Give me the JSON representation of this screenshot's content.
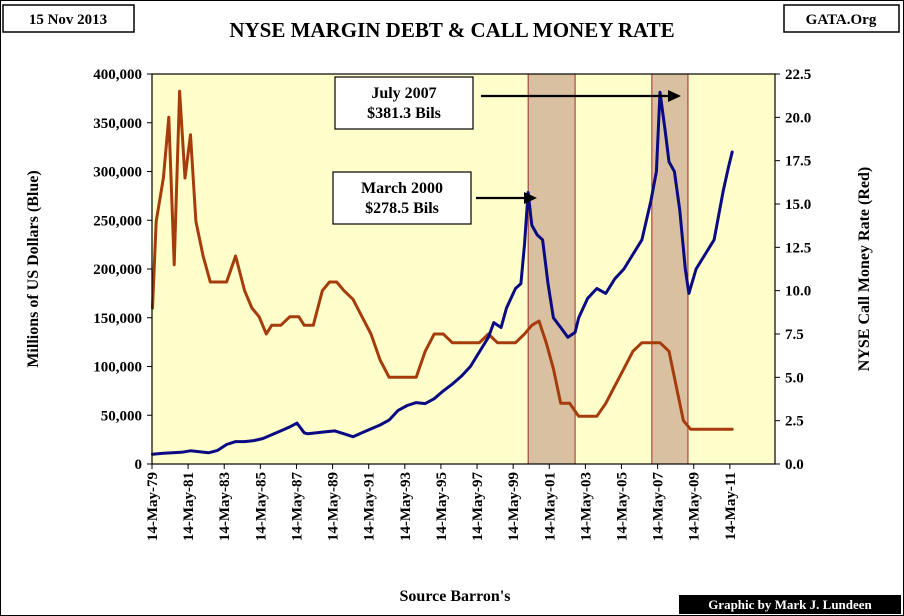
{
  "header": {
    "date": "15 Nov 2013",
    "title": "NYSE MARGIN DEBT & CALL MONEY RATE",
    "site": "GATA.Org"
  },
  "footer": {
    "source": "Source Barron's",
    "credit": "Graphic by Mark J. Lundeen"
  },
  "colors": {
    "background": "#ffffcc",
    "shade": "#d8c0a0",
    "shade_edge": "#9c2a2a",
    "margin_debt": "#0a0a82",
    "call_rate": "#a63c0c"
  },
  "chart_data": {
    "type": "line",
    "title": "NYSE MARGIN DEBT & CALL MONEY RATE",
    "xlabel": "Source Barron's",
    "ylabel": "Millions of US Dollars  (Blue)",
    "y2label": "NYSE Call Money Rate   (Red)",
    "xlim": [
      1979.37,
      2013.87
    ],
    "ylim": [
      0,
      400000
    ],
    "y2lim": [
      0,
      22.5
    ],
    "x_ticks": [
      "14-May-79",
      "14-May-81",
      "14-May-83",
      "14-May-85",
      "14-May-87",
      "14-May-89",
      "14-May-91",
      "14-May-93",
      "14-May-95",
      "14-May-97",
      "14-May-99",
      "14-May-01",
      "14-May-03",
      "14-May-05",
      "14-May-07",
      "14-May-09",
      "14-May-11"
    ],
    "x_tick_years": [
      1979.37,
      1981.37,
      1983.37,
      1985.37,
      1987.37,
      1989.37,
      1991.37,
      1993.37,
      1995.37,
      1997.37,
      1999.37,
      2001.37,
      2003.37,
      2005.37,
      2007.37,
      2009.37,
      2011.37
    ],
    "y_ticks": [
      "0",
      "50,000",
      "100,000",
      "150,000",
      "200,000",
      "250,000",
      "300,000",
      "350,000",
      "400,000"
    ],
    "y_tick_values": [
      0,
      50000,
      100000,
      150000,
      200000,
      250000,
      300000,
      350000,
      400000
    ],
    "y2_ticks": [
      "0.0",
      "2.5",
      "5.0",
      "7.5",
      "10.0",
      "12.5",
      "15.0",
      "17.5",
      "20.0",
      "22.5"
    ],
    "y2_tick_values": [
      0,
      2.5,
      5,
      7.5,
      10,
      12.5,
      15,
      17.5,
      20,
      22.5
    ],
    "grid": false,
    "shaded_periods": [
      {
        "from": 2000.2,
        "to": 2002.8
      },
      {
        "from": 2007.05,
        "to": 2009.05
      }
    ],
    "annotations": [
      {
        "line1": "July 2007",
        "line2": "$381.3 Bils",
        "x": 2007.5,
        "y": 381300
      },
      {
        "line1": "March 2000",
        "line2": "$278.5 Bils",
        "x": 2000.2,
        "y": 278500
      }
    ],
    "series": [
      {
        "axis": "left",
        "x": [
          1979.4,
          1980,
          1980.5,
          1981,
          1981.5,
          1982,
          1982.5,
          1983,
          1983.5,
          1984,
          1984.5,
          1985,
          1985.5,
          1986,
          1986.5,
          1987,
          1987.4,
          1987.8,
          1988,
          1988.5,
          1989,
          1989.5,
          1990,
          1990.5,
          1991,
          1991.5,
          1992,
          1992.5,
          1993,
          1993.5,
          1994,
          1994.5,
          1995,
          1995.5,
          1996,
          1996.5,
          1997,
          1997.5,
          1998,
          1998.3,
          1998.7,
          1999,
          1999.5,
          1999.8,
          2000.0,
          2000.2,
          2000.4,
          2000.7,
          2001,
          2001.3,
          2001.6,
          2002,
          2002.4,
          2002.8,
          2003,
          2003.5,
          2004,
          2004.5,
          2005,
          2005.5,
          2006,
          2006.5,
          2007,
          2007.3,
          2007.5,
          2007.8,
          2008,
          2008.3,
          2008.6,
          2008.9,
          2009.1,
          2009.5,
          2010,
          2010.5,
          2011,
          2011.3,
          2011.5
        ],
        "y": [
          10000,
          11000,
          11500,
          12000,
          13500,
          12500,
          11500,
          14000,
          20000,
          23000,
          23000,
          24000,
          26000,
          30000,
          34000,
          38000,
          42000,
          32000,
          31000,
          32000,
          33000,
          34000,
          31000,
          28000,
          32000,
          36000,
          40000,
          45000,
          55000,
          60000,
          63000,
          62000,
          67000,
          75000,
          82000,
          90000,
          100000,
          115000,
          130000,
          145000,
          140000,
          160000,
          180000,
          185000,
          225000,
          278500,
          245000,
          235000,
          230000,
          185000,
          150000,
          140000,
          130000,
          135000,
          150000,
          170000,
          180000,
          175000,
          190000,
          200000,
          215000,
          230000,
          270000,
          300000,
          381300,
          340000,
          310000,
          300000,
          260000,
          200000,
          175000,
          200000,
          215000,
          230000,
          280000,
          305000,
          320000
        ]
      },
      {
        "axis": "right",
        "x": [
          1979.4,
          1979.6,
          1980.0,
          1980.3,
          1980.6,
          1980.9,
          1981.2,
          1981.5,
          1981.8,
          1982.2,
          1982.6,
          1983.0,
          1983.5,
          1984.0,
          1984.5,
          1984.9,
          1985.3,
          1985.7,
          1986.0,
          1986.5,
          1987.0,
          1987.5,
          1987.8,
          1988.3,
          1988.8,
          1989.2,
          1989.6,
          1990.0,
          1990.5,
          1991.0,
          1991.5,
          1992.0,
          1992.5,
          1993.0,
          1993.5,
          1994.0,
          1994.5,
          1995.0,
          1995.5,
          1996.0,
          1996.5,
          1997.0,
          1997.5,
          1998.0,
          1998.5,
          1999.0,
          1999.5,
          2000.0,
          2000.4,
          2000.8,
          2001.2,
          2001.6,
          2002.0,
          2002.5,
          2003.0,
          2003.5,
          2004.0,
          2004.5,
          2005.0,
          2005.5,
          2006.0,
          2006.5,
          2007.0,
          2007.5,
          2008.0,
          2008.5,
          2008.8,
          2009.2,
          2009.6,
          2010.0,
          2010.5,
          2011.0,
          2011.5
        ],
        "y": [
          9.0,
          14.0,
          16.5,
          20.0,
          11.5,
          21.5,
          16.5,
          19.0,
          14.0,
          12.0,
          10.5,
          10.5,
          10.5,
          12.0,
          10.0,
          9.0,
          8.5,
          7.5,
          8.0,
          8.0,
          8.5,
          8.5,
          8.0,
          8.0,
          10.0,
          10.5,
          10.5,
          10.0,
          9.5,
          8.5,
          7.5,
          6.0,
          5.0,
          5.0,
          5.0,
          5.0,
          6.5,
          7.5,
          7.5,
          7.0,
          7.0,
          7.0,
          7.0,
          7.5,
          7.0,
          7.0,
          7.0,
          7.5,
          8.0,
          8.25,
          7.0,
          5.5,
          3.5,
          3.5,
          2.75,
          2.75,
          2.75,
          3.5,
          4.5,
          5.5,
          6.5,
          7.0,
          7.0,
          7.0,
          6.5,
          4.0,
          2.5,
          2.0,
          2.0,
          2.0,
          2.0,
          2.0,
          2.0
        ]
      }
    ]
  }
}
